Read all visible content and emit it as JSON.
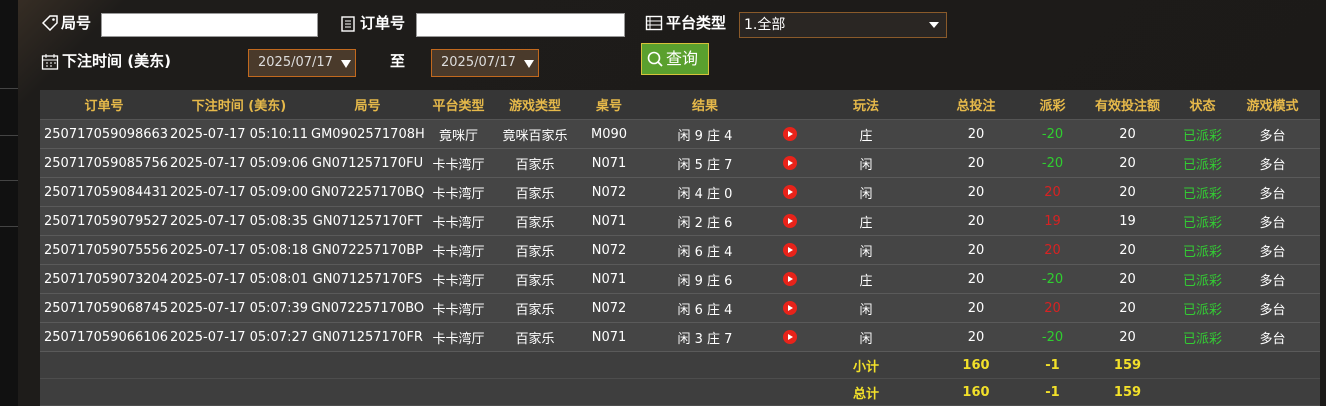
{
  "filters": {
    "round_label": "局号",
    "order_label": "订单号",
    "platform_label": "平台类型",
    "platform_value": "1.全部",
    "time_label": "下注时间 (美东)",
    "date_from": "2025/07/17",
    "to_label": "至",
    "date_to": "2025/07/17",
    "search_button": "查询"
  },
  "table": {
    "headers": [
      "订单号",
      "下注时间 (美东)",
      "局号",
      "平台类型",
      "游戏类型",
      "桌号",
      "结果",
      "玩法",
      "总投注",
      "派彩",
      "有效投注额",
      "状态",
      "游戏模式"
    ],
    "rows": [
      [
        "250717059098663",
        "2025-07-17 05:10:11",
        "GM0902571708H",
        "竟咪厅",
        "竟咪百家乐",
        "M090",
        "闲 9 庄 4",
        "庄",
        20,
        -20,
        20,
        "已派彩",
        "多台"
      ],
      [
        "250717059085756",
        "2025-07-17 05:09:06",
        "GN071257170FU",
        "卡卡湾厅",
        "百家乐",
        "N071",
        "闲 5 庄 7",
        "闲",
        20,
        -20,
        20,
        "已派彩",
        "多台"
      ],
      [
        "250717059084431",
        "2025-07-17 05:09:00",
        "GN072257170BQ",
        "卡卡湾厅",
        "百家乐",
        "N072",
        "闲 4 庄 0",
        "闲",
        20,
        20,
        20,
        "已派彩",
        "多台"
      ],
      [
        "250717059079527",
        "2025-07-17 05:08:35",
        "GN071257170FT",
        "卡卡湾厅",
        "百家乐",
        "N071",
        "闲 2 庄 6",
        "庄",
        20,
        19,
        19,
        "已派彩",
        "多台"
      ],
      [
        "250717059075556",
        "2025-07-17 05:08:18",
        "GN072257170BP",
        "卡卡湾厅",
        "百家乐",
        "N072",
        "闲 6 庄 4",
        "闲",
        20,
        20,
        20,
        "已派彩",
        "多台"
      ],
      [
        "250717059073204",
        "2025-07-17 05:08:01",
        "GN071257170FS",
        "卡卡湾厅",
        "百家乐",
        "N071",
        "闲 9 庄 6",
        "庄",
        20,
        -20,
        20,
        "已派彩",
        "多台"
      ],
      [
        "250717059068745",
        "2025-07-17 05:07:39",
        "GN072257170BO",
        "卡卡湾厅",
        "百家乐",
        "N072",
        "闲 6 庄 4",
        "闲",
        20,
        20,
        20,
        "已派彩",
        "多台"
      ],
      [
        "250717059066106",
        "2025-07-17 05:07:27",
        "GN071257170FR",
        "卡卡湾厅",
        "百家乐",
        "N071",
        "闲 3 庄 7",
        "闲",
        20,
        -20,
        20,
        "已派彩",
        "多台"
      ]
    ],
    "subtotal": {
      "label": "小计",
      "total_bet": 160,
      "payout": -1,
      "valid_bet": 159
    },
    "total": {
      "label": "总计",
      "total_bet": 160,
      "payout": -1,
      "valid_bet": 159
    }
  }
}
